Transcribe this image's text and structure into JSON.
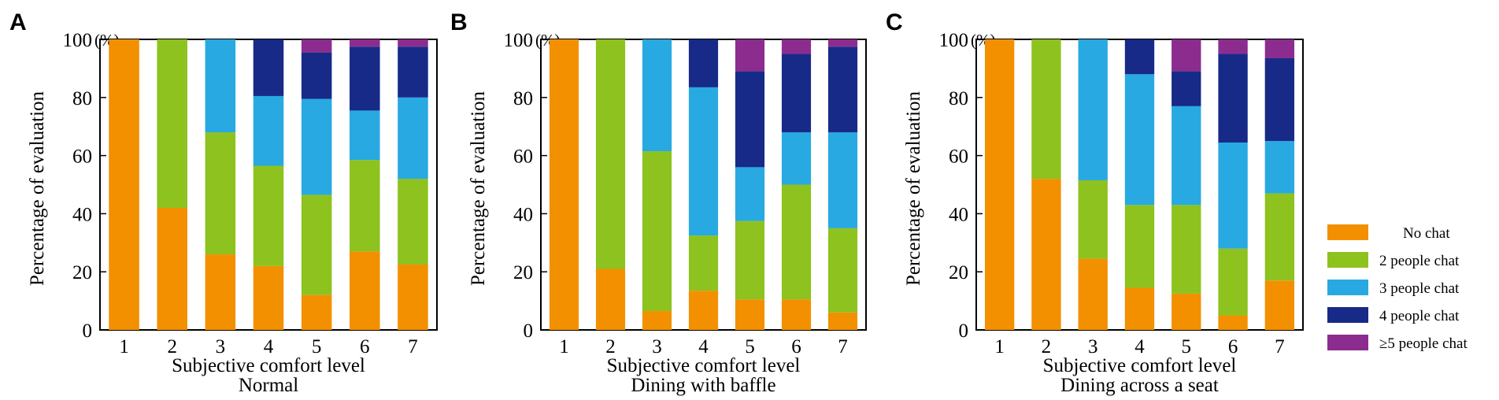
{
  "chart_data": [
    {
      "type": "bar",
      "stacked": true,
      "panel": "A",
      "subtitle": "Normal",
      "xlabel": "Subjective comfort level",
      "ylabel": "Percentage of evaluation",
      "unit": "(%)",
      "categories": [
        "1",
        "2",
        "3",
        "4",
        "5",
        "6",
        "7"
      ],
      "yticks": [
        "0",
        "20",
        "40",
        "60",
        "80",
        "100"
      ],
      "ylim": [
        0,
        100
      ],
      "series": [
        {
          "name": "No chat",
          "values": [
            100,
            42,
            26,
            22,
            12,
            27,
            22.5
          ]
        },
        {
          "name": "2 people chat",
          "values": [
            0,
            58,
            42,
            34.5,
            34.5,
            31.5,
            29.5
          ]
        },
        {
          "name": "3 people chat",
          "values": [
            0,
            0,
            32,
            24,
            33,
            17,
            28
          ]
        },
        {
          "name": "4 people chat",
          "values": [
            0,
            0,
            0,
            19.5,
            16,
            22,
            17.5
          ]
        },
        {
          "name": "≥5 people chat",
          "values": [
            0,
            0,
            0,
            0,
            4.5,
            2.5,
            2.5
          ]
        }
      ]
    },
    {
      "type": "bar",
      "stacked": true,
      "panel": "B",
      "subtitle": "Dining with baffle",
      "xlabel": "Subjective comfort level",
      "ylabel": "Percentage of evaluation",
      "unit": "(%)",
      "categories": [
        "1",
        "2",
        "3",
        "4",
        "5",
        "6",
        "7"
      ],
      "yticks": [
        "0",
        "20",
        "40",
        "60",
        "80",
        "100"
      ],
      "ylim": [
        0,
        100
      ],
      "series": [
        {
          "name": "No chat",
          "values": [
            100,
            21,
            6.5,
            13.5,
            10.5,
            10.5,
            6
          ]
        },
        {
          "name": "2 people chat",
          "values": [
            0,
            79,
            55,
            19,
            27,
            39.5,
            29
          ]
        },
        {
          "name": "3 people chat",
          "values": [
            0,
            0,
            38.5,
            51,
            18.5,
            18,
            33
          ]
        },
        {
          "name": "4 people chat",
          "values": [
            0,
            0,
            0,
            16.5,
            33,
            27,
            29.5
          ]
        },
        {
          "name": "≥5 people chat",
          "values": [
            0,
            0,
            0,
            0,
            11,
            5,
            2.5
          ]
        }
      ]
    },
    {
      "type": "bar",
      "stacked": true,
      "panel": "C",
      "subtitle": "Dining across a seat",
      "xlabel": "Subjective comfort level",
      "ylabel": "Percentage of evaluation",
      "unit": "(%)",
      "categories": [
        "1",
        "2",
        "3",
        "4",
        "5",
        "6",
        "7"
      ],
      "yticks": [
        "0",
        "20",
        "40",
        "60",
        "80",
        "100"
      ],
      "ylim": [
        0,
        100
      ],
      "series": [
        {
          "name": "No chat",
          "values": [
            100,
            52,
            24.5,
            14.5,
            12.5,
            5,
            17
          ]
        },
        {
          "name": "2 people chat",
          "values": [
            0,
            48,
            27,
            28.5,
            30.5,
            23,
            30
          ]
        },
        {
          "name": "3 people chat",
          "values": [
            0,
            0,
            48.5,
            45,
            34,
            36.5,
            18
          ]
        },
        {
          "name": "4 people chat",
          "values": [
            0,
            0,
            0,
            12,
            12,
            30.5,
            28.5
          ]
        },
        {
          "name": "≥5 people chat",
          "values": [
            0,
            0,
            0,
            0,
            11,
            5,
            6.5
          ]
        }
      ]
    }
  ],
  "legend": {
    "items": [
      {
        "label": "No chat",
        "color": "#F39000"
      },
      {
        "label": "2 people chat",
        "color": "#8DC21F"
      },
      {
        "label": "3 people chat",
        "color": "#28A9E1"
      },
      {
        "label": "4 people chat",
        "color": "#172A87"
      },
      {
        "label": "≥5 people chat",
        "color": "#8C2C8F"
      }
    ]
  },
  "colors": [
    "#F39000",
    "#8DC21F",
    "#28A9E1",
    "#172A87",
    "#8C2C8F"
  ]
}
